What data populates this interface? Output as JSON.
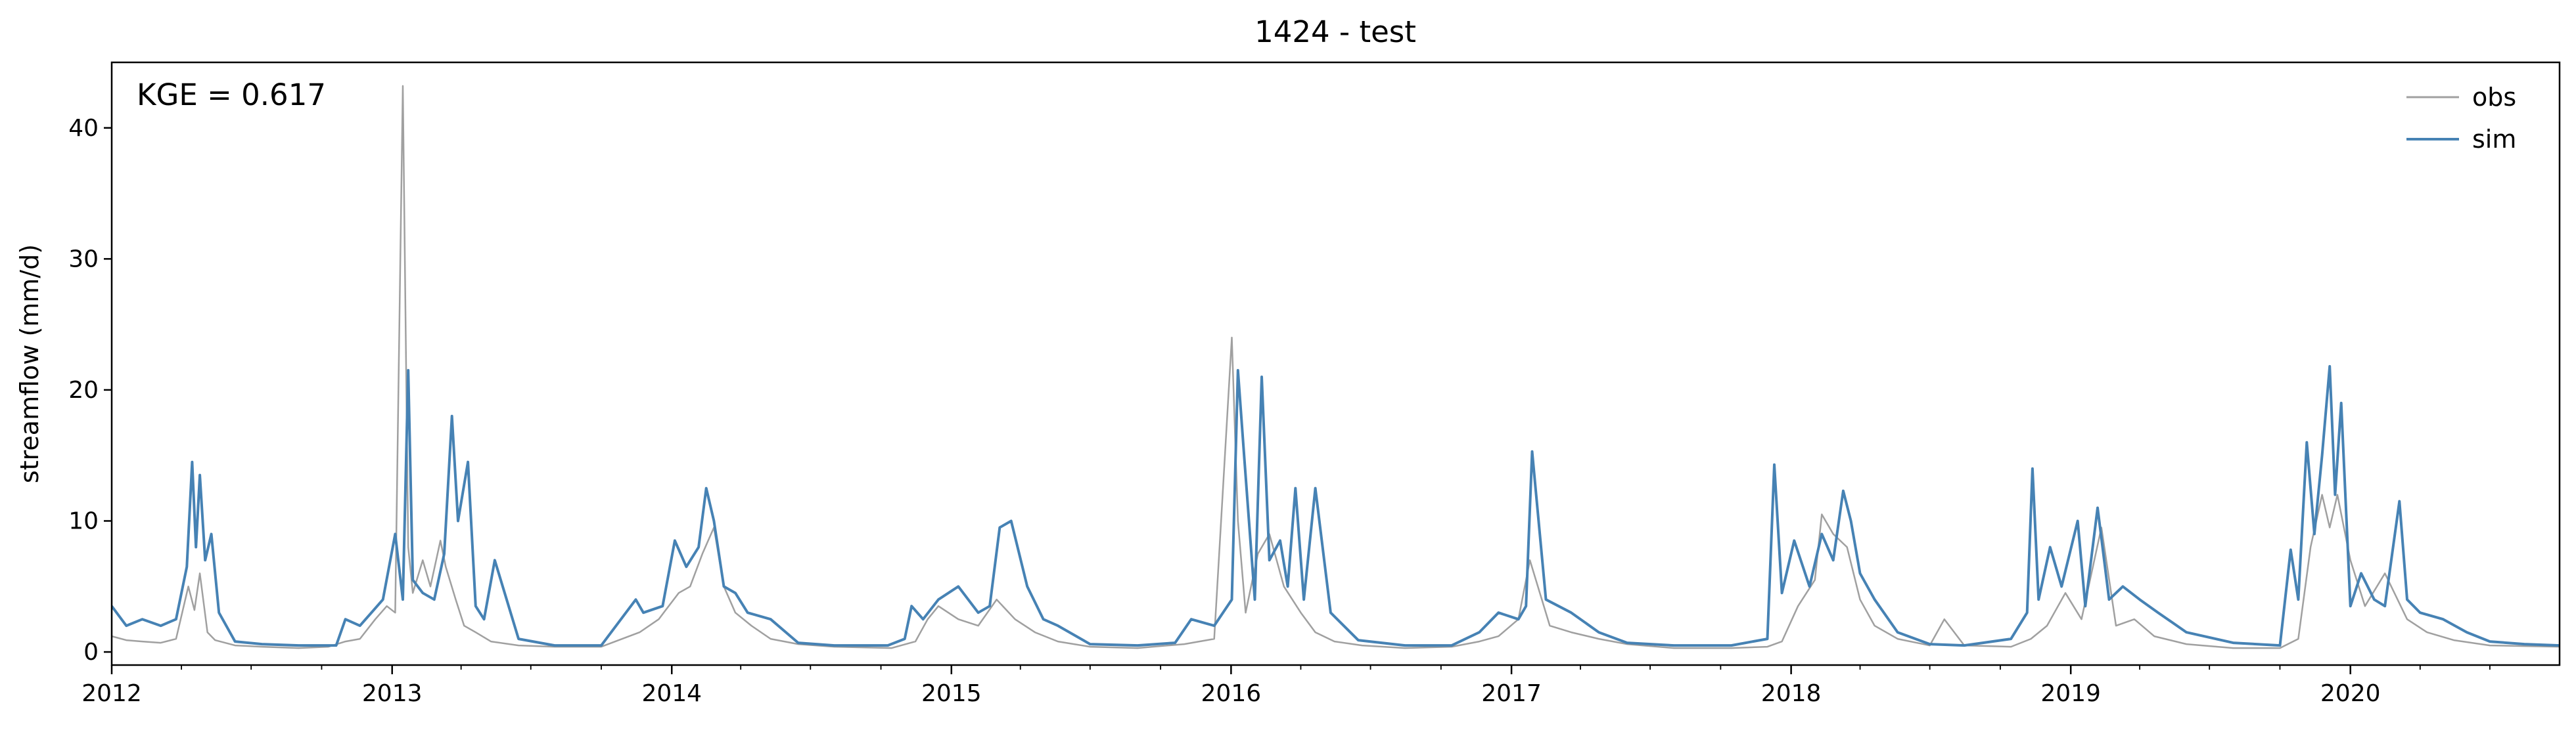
{
  "chart_data": {
    "type": "line",
    "title": "1424 - test",
    "xlabel": "",
    "ylabel": "streamflow (mm/d)",
    "annotation": "KGE = 0.617",
    "xlim": [
      "2012-01-01",
      "2020-09-30"
    ],
    "ylim": [
      -1,
      45
    ],
    "x_ticks": [
      "2012",
      "2013",
      "2014",
      "2015",
      "2016",
      "2017",
      "2018",
      "2019",
      "2020"
    ],
    "y_ticks": [
      0,
      10,
      20,
      30,
      40
    ],
    "grid": false,
    "legend": {
      "placement": "top-right",
      "entries": [
        "obs",
        "sim"
      ]
    },
    "series": [
      {
        "name": "obs",
        "color": "#a0a0a0",
        "x": [
          "2012-01-01",
          "2012-01-20",
          "2012-02-10",
          "2012-03-05",
          "2012-03-25",
          "2012-04-10",
          "2012-04-18",
          "2012-04-25",
          "2012-05-05",
          "2012-05-15",
          "2012-06-10",
          "2012-07-15",
          "2012-09-01",
          "2012-10-10",
          "2012-11-01",
          "2012-11-20",
          "2012-12-10",
          "2012-12-25",
          "2013-01-05",
          "2013-01-15",
          "2013-01-22",
          "2013-01-28",
          "2013-02-10",
          "2013-02-20",
          "2013-03-05",
          "2013-03-12",
          "2013-03-25",
          "2013-04-05",
          "2013-04-20",
          "2013-05-10",
          "2013-06-15",
          "2013-08-01",
          "2013-10-01",
          "2013-11-20",
          "2013-12-15",
          "2014-01-10",
          "2014-01-25",
          "2014-02-10",
          "2014-02-25",
          "2014-03-10",
          "2014-03-25",
          "2014-04-15",
          "2014-05-10",
          "2014-06-15",
          "2014-08-01",
          "2014-10-15",
          "2014-11-15",
          "2014-12-01",
          "2014-12-15",
          "2015-01-10",
          "2015-02-05",
          "2015-03-01",
          "2015-03-25",
          "2015-04-20",
          "2015-05-20",
          "2015-07-01",
          "2015-09-01",
          "2015-11-01",
          "2015-12-10",
          "2016-01-02",
          "2016-01-10",
          "2016-01-20",
          "2016-02-05",
          "2016-02-20",
          "2016-03-10",
          "2016-04-01",
          "2016-04-20",
          "2016-05-15",
          "2016-06-20",
          "2016-08-15",
          "2016-10-15",
          "2016-11-20",
          "2016-12-15",
          "2017-01-10",
          "2017-01-25",
          "2017-02-20",
          "2017-03-20",
          "2017-04-25",
          "2017-06-01",
          "2017-08-01",
          "2017-10-15",
          "2017-12-01",
          "2017-12-20",
          "2018-01-10",
          "2018-02-01",
          "2018-02-10",
          "2018-02-25",
          "2018-03-15",
          "2018-04-01",
          "2018-04-20",
          "2018-05-20",
          "2018-07-01",
          "2018-07-20",
          "2018-08-15",
          "2018-10-15",
          "2018-11-10",
          "2018-12-01",
          "2018-12-25",
          "2019-01-15",
          "2019-02-10",
          "2019-03-01",
          "2019-03-25",
          "2019-04-20",
          "2019-06-01",
          "2019-08-01",
          "2019-10-01",
          "2019-10-25",
          "2019-11-10",
          "2019-11-25",
          "2019-12-05",
          "2019-12-15",
          "2020-01-01",
          "2020-01-20",
          "2020-02-15",
          "2020-03-15",
          "2020-04-10",
          "2020-05-15",
          "2020-07-01",
          "2020-09-30"
        ],
        "y": [
          1.2,
          0.9,
          0.8,
          0.7,
          1.0,
          5.0,
          3.2,
          6.0,
          1.5,
          0.9,
          0.5,
          0.4,
          0.3,
          0.4,
          0.8,
          1.0,
          2.5,
          3.5,
          3.0,
          43.2,
          8.0,
          4.5,
          7.0,
          5.0,
          8.5,
          6.5,
          4.0,
          2.0,
          1.5,
          0.8,
          0.5,
          0.4,
          0.4,
          1.5,
          2.5,
          4.5,
          5.0,
          7.5,
          9.5,
          5.0,
          3.0,
          2.0,
          1.0,
          0.6,
          0.4,
          0.3,
          0.8,
          2.5,
          3.5,
          2.5,
          2.0,
          4.0,
          2.5,
          1.5,
          0.8,
          0.4,
          0.3,
          0.6,
          1.0,
          24.0,
          10.0,
          3.0,
          7.5,
          9.0,
          5.0,
          3.0,
          1.5,
          0.8,
          0.5,
          0.3,
          0.4,
          0.8,
          1.2,
          2.5,
          7.0,
          2.0,
          1.5,
          1.0,
          0.6,
          0.3,
          0.3,
          0.4,
          0.8,
          3.5,
          5.5,
          10.5,
          9.0,
          8.0,
          4.0,
          2.0,
          1.0,
          0.5,
          2.5,
          0.5,
          0.4,
          1.0,
          2.0,
          4.5,
          2.5,
          9.5,
          2.0,
          2.5,
          1.2,
          0.6,
          0.3,
          0.3,
          1.0,
          8.0,
          12.0,
          9.5,
          12.0,
          7.0,
          3.5,
          6.0,
          2.5,
          1.5,
          0.9,
          0.5,
          0.4
        ]
      },
      {
        "name": "sim",
        "color": "#4682b4",
        "x": [
          "2012-01-01",
          "2012-01-20",
          "2012-02-10",
          "2012-03-05",
          "2012-03-25",
          "2012-04-08",
          "2012-04-15",
          "2012-04-20",
          "2012-04-25",
          "2012-05-02",
          "2012-05-10",
          "2012-05-20",
          "2012-06-10",
          "2012-07-15",
          "2012-09-01",
          "2012-10-20",
          "2012-11-01",
          "2012-11-20",
          "2012-12-05",
          "2012-12-20",
          "2013-01-05",
          "2013-01-15",
          "2013-01-22",
          "2013-01-28",
          "2013-02-10",
          "2013-02-25",
          "2013-03-10",
          "2013-03-20",
          "2013-03-28",
          "2013-04-10",
          "2013-04-20",
          "2013-05-01",
          "2013-05-15",
          "2013-06-15",
          "2013-08-01",
          "2013-10-01",
          "2013-11-15",
          "2013-11-25",
          "2013-12-20",
          "2014-01-05",
          "2014-01-20",
          "2014-02-05",
          "2014-02-15",
          "2014-02-25",
          "2014-03-10",
          "2014-03-25",
          "2014-04-10",
          "2014-05-10",
          "2014-06-15",
          "2014-08-01",
          "2014-10-10",
          "2014-11-01",
          "2014-11-10",
          "2014-11-25",
          "2014-12-15",
          "2015-01-10",
          "2015-02-05",
          "2015-02-20",
          "2015-03-05",
          "2015-03-20",
          "2015-04-10",
          "2015-05-01",
          "2015-05-20",
          "2015-07-01",
          "2015-09-01",
          "2015-10-20",
          "2015-11-10",
          "2015-12-10",
          "2016-01-02",
          "2016-01-10",
          "2016-01-18",
          "2016-02-01",
          "2016-02-10",
          "2016-02-20",
          "2016-03-05",
          "2016-03-15",
          "2016-03-25",
          "2016-04-05",
          "2016-04-20",
          "2016-05-10",
          "2016-06-15",
          "2016-08-15",
          "2016-10-15",
          "2016-11-20",
          "2016-12-15",
          "2017-01-10",
          "2017-01-20",
          "2017-01-28",
          "2017-02-15",
          "2017-03-20",
          "2017-04-25",
          "2017-06-01",
          "2017-08-01",
          "2017-10-15",
          "2017-12-01",
          "2017-12-10",
          "2017-12-20",
          "2018-01-05",
          "2018-01-25",
          "2018-02-10",
          "2018-02-25",
          "2018-03-10",
          "2018-03-20",
          "2018-04-01",
          "2018-04-20",
          "2018-05-20",
          "2018-07-01",
          "2018-08-15",
          "2018-10-15",
          "2018-11-05",
          "2018-11-12",
          "2018-11-20",
          "2018-12-05",
          "2018-12-20",
          "2019-01-10",
          "2019-01-20",
          "2019-02-05",
          "2019-02-20",
          "2019-03-10",
          "2019-04-01",
          "2019-04-25",
          "2019-06-01",
          "2019-08-01",
          "2019-10-01",
          "2019-10-15",
          "2019-10-25",
          "2019-11-05",
          "2019-11-15",
          "2019-11-25",
          "2019-12-05",
          "2019-12-12",
          "2019-12-20",
          "2020-01-01",
          "2020-01-15",
          "2020-02-01",
          "2020-02-15",
          "2020-03-05",
          "2020-03-15",
          "2020-04-01",
          "2020-05-01",
          "2020-06-01",
          "2020-07-01",
          "2020-08-15",
          "2020-09-30"
        ],
        "y": [
          3.5,
          2.0,
          2.5,
          2.0,
          2.5,
          6.5,
          14.5,
          8.0,
          13.5,
          7.0,
          9.0,
          3.0,
          0.8,
          0.6,
          0.5,
          0.5,
          2.5,
          2.0,
          3.0,
          4.0,
          9.0,
          4.0,
          21.5,
          5.5,
          4.5,
          4.0,
          7.5,
          18.0,
          10.0,
          14.5,
          3.5,
          2.5,
          7.0,
          1.0,
          0.5,
          0.5,
          4.0,
          3.0,
          3.5,
          8.5,
          6.5,
          8.0,
          12.5,
          10.0,
          5.0,
          4.5,
          3.0,
          2.5,
          0.7,
          0.5,
          0.5,
          1.0,
          3.5,
          2.5,
          4.0,
          5.0,
          3.0,
          3.5,
          9.5,
          10.0,
          5.0,
          2.5,
          2.0,
          0.6,
          0.5,
          0.7,
          2.5,
          2.0,
          4.0,
          21.5,
          15.0,
          4.0,
          21.0,
          7.0,
          8.5,
          5.0,
          12.5,
          4.0,
          12.5,
          3.0,
          0.9,
          0.5,
          0.5,
          1.5,
          3.0,
          2.5,
          3.5,
          15.3,
          4.0,
          3.0,
          1.5,
          0.7,
          0.5,
          0.5,
          1.0,
          14.3,
          4.5,
          8.5,
          5.0,
          9.0,
          7.0,
          12.3,
          10.0,
          6.0,
          4.0,
          1.5,
          0.6,
          0.5,
          1.0,
          3.0,
          14.0,
          4.0,
          8.0,
          5.0,
          10.0,
          3.5,
          11.0,
          4.0,
          5.0,
          4.0,
          3.0,
          1.5,
          0.7,
          0.5,
          7.8,
          4.0,
          16.0,
          9.0,
          15.0,
          21.8,
          12.0,
          19.0,
          3.5,
          6.0,
          4.0,
          3.5,
          11.5,
          4.0,
          3.0,
          2.5,
          1.5,
          0.8,
          0.6,
          0.5
        ]
      }
    ]
  }
}
